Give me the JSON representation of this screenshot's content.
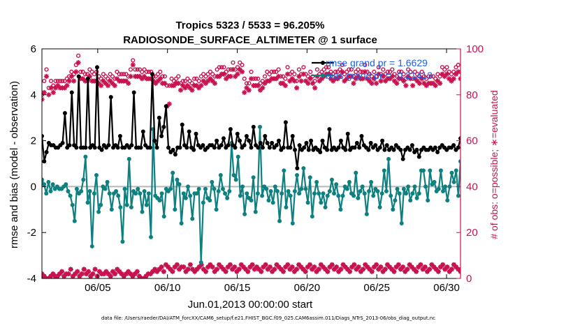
{
  "chart_data": {
    "type": "line",
    "title_line1": "Tropics 5323 / 5533 = 96.205%",
    "title_line2": "RADIOSONDE_SURFACE_ALTIMETER @ 1 surface",
    "xlabel": "Jun.01,2013 00:00:00 start",
    "ylabel_left": "rmse and bias (model - observation)",
    "ylabel_right": "# of obs: o=possible; ∗=evaluated",
    "footer": "data file: /Users/raeder/DAI/ATM_forcXX/CAM6_setup/f.e21.FHIST_BGC.f09_025.CAM6assim.011/Diags_NTrS_2013-06/obs_diag_output.nc",
    "xlim": [
      1,
      31
    ],
    "ylim_left": [
      -4,
      6
    ],
    "ylim_right": [
      0,
      100
    ],
    "x_ticks": [
      5,
      10,
      15,
      20,
      25,
      30
    ],
    "x_tick_labels": [
      "06/05",
      "06/10",
      "06/15",
      "06/20",
      "06/25",
      "06/30"
    ],
    "y_left_ticks": [
      -4,
      -2,
      0,
      2,
      4,
      6
    ],
    "y_left_tick_labels": [
      "-4",
      "-2",
      "0",
      "2",
      "4",
      "6"
    ],
    "y_right_ticks": [
      0,
      20,
      40,
      60,
      80,
      100
    ],
    "y_right_tick_labels": [
      "0",
      "20",
      "40",
      "60",
      "80",
      "100"
    ],
    "colors": {
      "rmse": "#000000",
      "bias": "#0e8080",
      "counts": "#c8134f",
      "zero_line": "#b8b8b8",
      "legend_text": "#1a5fe6"
    },
    "series": [
      {
        "name": "rmse",
        "legend": "rmse grand pr = 1.6629",
        "values": [
          2.2,
          1.1,
          1.5,
          1.9,
          1.8,
          1.8,
          1.7,
          1.7,
          1.8,
          1.9,
          3.2,
          1.7,
          1.8,
          4.1,
          1.8,
          1.7,
          4.8,
          1.7,
          1.7,
          1.7,
          4.7,
          1.7,
          1.8,
          1.7,
          5.2,
          1.7,
          1.6,
          1.8,
          1.7,
          1.8,
          3.9,
          1.7,
          1.8,
          1.7,
          2.2,
          1.7,
          1.7,
          1.8,
          1.7,
          1.8,
          4.1,
          1.7,
          1.7,
          1.7,
          2.4,
          1.8,
          1.7,
          1.7,
          4.9,
          2.0,
          1.7,
          3.0,
          2.2,
          2.6,
          3.5,
          1.7,
          1.5,
          1.6,
          1.4,
          1.7,
          1.7,
          2.7,
          1.8,
          1.7,
          2.4,
          1.7,
          1.6,
          2.3,
          1.8,
          1.7,
          1.8,
          1.6,
          1.7,
          1.8,
          1.8,
          1.7,
          2.0,
          1.7,
          1.8,
          2.1,
          1.7,
          1.8,
          2.5,
          1.8,
          1.7,
          2.3,
          2.0,
          1.7,
          1.8,
          2.2,
          2.0,
          1.7,
          2.6,
          1.8,
          1.7,
          1.9,
          1.7,
          2.2,
          1.9,
          1.7,
          1.9,
          1.7,
          1.8,
          2.0,
          1.6,
          1.7,
          2.8,
          1.7,
          1.7,
          2.2,
          1.6,
          0.8,
          1.8,
          1.6,
          1.7,
          1.9,
          1.6,
          2.0,
          1.6,
          1.7,
          1.6,
          1.5,
          2.0,
          1.7,
          1.6,
          2.5,
          1.6,
          1.7,
          1.6,
          1.7,
          2.0,
          1.7,
          1.6,
          2.3,
          1.6,
          1.7,
          1.7,
          1.9,
          1.7,
          2.2,
          1.8,
          1.7,
          1.6,
          1.9,
          1.7,
          1.8,
          1.6,
          1.7,
          2.0,
          1.6,
          1.8,
          1.6,
          1.7,
          1.6,
          1.8,
          1.7,
          1.6,
          1.2,
          1.6,
          1.7,
          1.6,
          1.8,
          1.5,
          1.6,
          1.3,
          1.6,
          1.7,
          1.6,
          1.6,
          1.7,
          1.6,
          1.7,
          1.5,
          1.7,
          1.8,
          1.7,
          1.6,
          1.7,
          1.7,
          1.8,
          1.6,
          1.7,
          2.1
        ]
      },
      {
        "name": "bias",
        "legend": "bias grand pr = -0.21413",
        "values": [
          0.3,
          0.1,
          -0.3,
          0.2,
          -0.2,
          0.1,
          -0.1,
          0.0,
          -0.1,
          -0.1,
          0.0,
          0.1,
          -0.2,
          -0.4,
          -0.8,
          -1.5,
          -0.1,
          -0.3,
          -0.2,
          0.3,
          1.3,
          -0.7,
          -0.2,
          -2.6,
          -0.3,
          0.5,
          -1.1,
          -0.8,
          0.0,
          -0.1,
          0.2,
          -0.3,
          -1.0,
          -0.3,
          -0.2,
          -0.4,
          -0.9,
          -2.4,
          -0.1,
          -0.8,
          1.2,
          -0.9,
          -0.2,
          -0.3,
          -0.1,
          -0.3,
          -1.1,
          -0.2,
          -0.8,
          -0.3,
          -2.2,
          2.5,
          -0.4,
          -0.5,
          -0.6,
          -0.3,
          -1.3,
          -0.1,
          -0.2,
          -0.1,
          0.6,
          -1.0,
          0.3,
          0.1,
          -1.6,
          -0.3,
          -0.5,
          0.0,
          -0.4,
          -1.4,
          -0.3,
          -0.3,
          -0.1,
          -3.3,
          -0.7,
          -0.1,
          -0.5,
          -0.6,
          0.2,
          -0.1,
          -1.0,
          -0.2,
          0.5,
          -0.1,
          -0.3,
          -0.5,
          -0.2,
          1.9,
          0.5,
          0.3,
          1.3,
          -0.4,
          0.0,
          -1.2,
          -0.3,
          -0.5,
          -0.6,
          0.4,
          -1.1,
          -0.3,
          2.6,
          -0.4,
          0.0,
          -0.1,
          -0.6,
          -0.2,
          -0.7,
          0.0,
          -0.2,
          -1.5,
          -0.3,
          0.7,
          -0.9,
          -0.2,
          -0.4,
          -1.6,
          -0.2,
          0.5,
          -0.3,
          -0.1,
          0.8,
          -0.1,
          -0.7,
          0.4,
          -1.3,
          -0.3,
          0.2,
          -0.3,
          -0.7,
          -0.3,
          -0.9,
          -0.4,
          -0.2,
          0.3,
          -0.3,
          0.1,
          -0.4,
          -1.0,
          -0.4,
          0.0,
          -0.1,
          0.2,
          -0.3,
          -0.4,
          0.6,
          -0.5,
          -0.2,
          0.0,
          -0.3,
          -1.2,
          -0.2,
          0.2,
          -0.4,
          -0.1,
          -0.2,
          -0.9,
          -0.3,
          0.7,
          -0.2,
          1.2,
          -0.4,
          -1.0,
          -0.6,
          -0.1,
          -0.3,
          -1.6,
          -0.1,
          -0.3,
          0.0,
          -0.6,
          -0.3,
          0.0,
          -0.5,
          -0.3,
          0.7,
          0.7,
          0.0,
          -0.6,
          0.7,
          0.1,
          0.2,
          -0.2,
          -0.1,
          0.7,
          -0.2,
          0.0,
          -0.6,
          0.0,
          0.6,
          0.2,
          0.7,
          -0.4,
          1.1
        ]
      },
      {
        "name": "obs_possible",
        "marker": "o",
        "values": [
          80,
          86,
          91,
          83,
          86,
          84,
          86,
          86,
          86,
          86,
          86,
          87,
          88,
          90,
          89,
          93,
          97,
          90,
          90,
          89,
          89,
          91,
          90,
          89,
          90,
          88,
          87,
          89,
          88,
          87,
          89,
          88,
          87,
          90,
          89,
          89,
          89,
          89,
          88,
          91,
          95,
          91,
          91,
          91,
          90,
          91,
          90,
          90,
          90,
          88,
          88,
          89,
          90,
          88,
          88,
          84,
          84,
          87,
          86,
          87,
          88,
          85,
          86,
          86,
          87,
          86,
          85,
          87,
          87,
          86,
          88,
          89,
          88,
          89,
          90,
          89,
          88,
          91,
          92,
          92,
          92,
          90,
          91,
          91,
          94,
          91,
          92,
          94,
          93,
          87,
          85,
          85,
          90,
          87,
          87,
          87,
          85,
          86,
          88,
          90,
          89,
          90,
          90,
          90,
          91,
          88,
          88,
          87,
          92,
          89,
          90,
          89,
          86,
          91,
          89,
          92,
          89,
          88,
          90,
          88,
          86,
          91,
          89,
          90,
          91,
          92,
          92,
          90,
          89,
          90,
          90,
          91,
          93,
          89,
          90,
          91,
          91,
          88,
          90,
          91,
          90,
          90,
          93,
          90,
          89,
          88,
          90,
          88,
          92,
          89,
          91,
          89,
          90,
          90,
          91,
          89,
          88,
          90,
          90,
          89,
          87,
          91,
          90,
          87,
          90,
          89,
          88,
          90,
          88,
          87,
          88,
          88,
          88,
          87,
          89,
          88,
          92,
          91,
          92,
          90,
          89,
          90,
          92,
          93,
          90
        ]
      },
      {
        "name": "obs_evaluated",
        "marker": "*",
        "values": [
          78,
          81,
          88,
          80,
          83,
          81,
          83,
          84,
          83,
          83,
          83,
          84,
          86,
          88,
          86,
          90,
          94,
          87,
          87,
          86,
          86,
          88,
          86,
          86,
          86,
          85,
          84,
          86,
          85,
          84,
          86,
          85,
          84,
          87,
          86,
          86,
          86,
          86,
          85,
          88,
          93,
          88,
          88,
          88,
          87,
          88,
          87,
          87,
          87,
          86,
          85,
          86,
          87,
          85,
          85,
          75,
          76,
          84,
          84,
          85,
          85,
          82,
          84,
          83,
          84,
          83,
          82,
          84,
          84,
          83,
          84,
          86,
          85,
          86,
          87,
          86,
          85,
          88,
          88,
          89,
          89,
          87,
          88,
          88,
          91,
          88,
          89,
          91,
          90,
          81,
          83,
          82,
          87,
          84,
          84,
          84,
          82,
          83,
          85,
          86,
          86,
          87,
          87,
          87,
          88,
          85,
          85,
          84,
          89,
          86,
          87,
          86,
          83,
          88,
          86,
          89,
          86,
          85,
          87,
          85,
          83,
          88,
          86,
          87,
          88,
          89,
          89,
          87,
          86,
          87,
          87,
          88,
          90,
          86,
          87,
          88,
          88,
          85,
          87,
          88,
          87,
          87,
          90,
          87,
          86,
          85,
          87,
          85,
          89,
          86,
          88,
          86,
          87,
          87,
          88,
          86,
          85,
          87,
          87,
          86,
          84,
          88,
          87,
          84,
          87,
          86,
          85,
          87,
          85,
          84,
          85,
          85,
          85,
          84,
          86,
          85,
          89,
          88,
          89,
          87,
          86,
          87,
          89,
          90,
          87
        ]
      },
      {
        "name": "bottom_possible",
        "marker": "o",
        "values": [
          2,
          1,
          0,
          0,
          1,
          2,
          1,
          1,
          2,
          3,
          1,
          2,
          2,
          4,
          1,
          2,
          3,
          1,
          2,
          4,
          2,
          3,
          1,
          2,
          4,
          1,
          3,
          2,
          2,
          3,
          2,
          1,
          3,
          2,
          4,
          3,
          2,
          1,
          2,
          3,
          2,
          1,
          2,
          3,
          1,
          0,
          0,
          1,
          2,
          2,
          3,
          4,
          3,
          4,
          5,
          3,
          6,
          5,
          4,
          3,
          5,
          6,
          4,
          5,
          5,
          3,
          4,
          6,
          4,
          3,
          4,
          5,
          6,
          4,
          3,
          5,
          6,
          5,
          3,
          4,
          6,
          5,
          4,
          3,
          5,
          6,
          4,
          5,
          3,
          4,
          6,
          5,
          4,
          3,
          5,
          6,
          4,
          5,
          4,
          3,
          5,
          6,
          4,
          5,
          3,
          4,
          6,
          5,
          4,
          3,
          5,
          6,
          4,
          5,
          3,
          4,
          6,
          5,
          4,
          3,
          5,
          6,
          4,
          5,
          3,
          4,
          6,
          5,
          4,
          3,
          5,
          6,
          4,
          5,
          3,
          4,
          6,
          5,
          4,
          3,
          5,
          6,
          4,
          5,
          3,
          4,
          6,
          5,
          4,
          3,
          5,
          6,
          4,
          5,
          3,
          4,
          6,
          5,
          4,
          3,
          5,
          6,
          4,
          5,
          3,
          4,
          6,
          5,
          4,
          3,
          5,
          6,
          4,
          5,
          3,
          4,
          6,
          5,
          4,
          3,
          5,
          6,
          4,
          5,
          3,
          4,
          6,
          5,
          4,
          3
        ]
      },
      {
        "name": "bottom_evaluated",
        "marker": "*",
        "values": [
          2,
          1,
          0,
          0,
          1,
          2,
          1,
          1,
          2,
          3,
          1,
          2,
          2,
          4,
          1,
          2,
          3,
          1,
          2,
          4,
          2,
          3,
          1,
          2,
          4,
          1,
          3,
          2,
          2,
          3,
          2,
          1,
          3,
          2,
          4,
          3,
          2,
          1,
          2,
          3,
          2,
          1,
          2,
          3,
          1,
          0,
          0,
          1,
          2,
          2,
          3,
          4,
          3,
          4,
          5,
          3,
          6,
          5,
          4,
          3,
          5,
          6,
          4,
          5,
          5,
          3,
          4,
          6,
          4,
          3,
          4,
          5,
          6,
          4,
          3,
          5,
          6,
          5,
          3,
          4,
          6,
          5,
          4,
          3,
          5,
          6,
          4,
          5,
          3,
          4,
          6,
          5,
          4,
          3,
          5,
          6,
          4,
          5,
          4,
          3,
          5,
          6,
          4,
          5,
          3,
          4,
          6,
          5,
          4,
          3,
          5,
          6,
          4,
          5,
          3,
          4,
          6,
          5,
          4,
          3,
          5,
          6,
          4,
          5,
          3,
          4,
          6,
          5,
          4,
          3,
          5,
          6,
          4,
          5,
          3,
          4,
          6,
          5,
          4,
          3,
          5,
          6,
          4,
          5,
          3,
          4,
          6,
          5,
          4,
          3,
          5,
          6,
          4,
          5,
          3,
          4,
          6,
          5,
          4,
          3,
          5,
          6,
          4,
          5,
          3,
          4,
          6,
          5,
          4,
          3,
          5,
          6,
          4,
          5,
          3,
          4,
          6,
          5,
          4,
          3,
          5,
          6,
          4,
          5,
          3,
          4,
          6,
          5,
          4,
          3
        ]
      }
    ]
  }
}
